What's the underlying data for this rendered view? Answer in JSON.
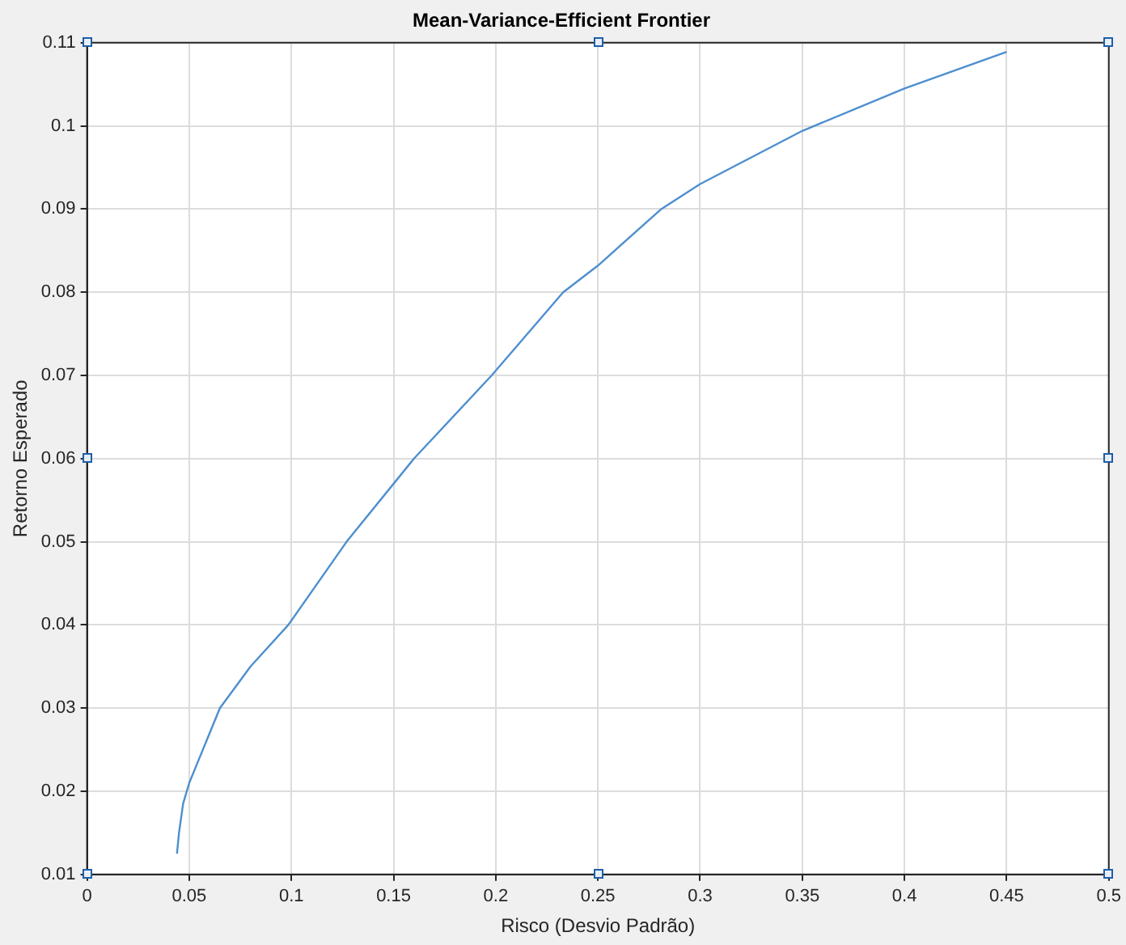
{
  "chart_data": {
    "type": "line",
    "title": "Mean-Variance-Efficient Frontier",
    "xlabel": "Risco (Desvio Padrão)",
    "ylabel": "Retorno Esperado",
    "x": [
      0.044,
      0.045,
      0.047,
      0.05,
      0.055,
      0.065,
      0.08,
      0.0985,
      0.127,
      0.16,
      0.198,
      0.233,
      0.25,
      0.281,
      0.3,
      0.35,
      0.4,
      0.45
    ],
    "series": [
      {
        "color": "#4d8fcf",
        "values": [
          0.0125,
          0.015,
          0.0185,
          0.021,
          0.024,
          0.03,
          0.035,
          0.04,
          0.05,
          0.06,
          0.07,
          0.08,
          0.0832,
          0.09,
          0.093,
          0.0994,
          0.1045,
          0.1089
        ]
      }
    ],
    "xlim": [
      0,
      0.5
    ],
    "xticks": [
      0,
      0.05,
      0.1,
      0.15,
      0.2,
      0.25,
      0.3,
      0.35,
      0.4,
      0.45,
      0.5
    ],
    "ylim": [
      0.01,
      0.11
    ],
    "yticks": [
      0.01,
      0.02,
      0.03,
      0.04,
      0.05,
      0.06,
      0.07,
      0.08,
      0.09,
      0.1,
      0.11
    ],
    "grid": true,
    "legend": false,
    "marker": "none",
    "line_style": "solid"
  }
}
